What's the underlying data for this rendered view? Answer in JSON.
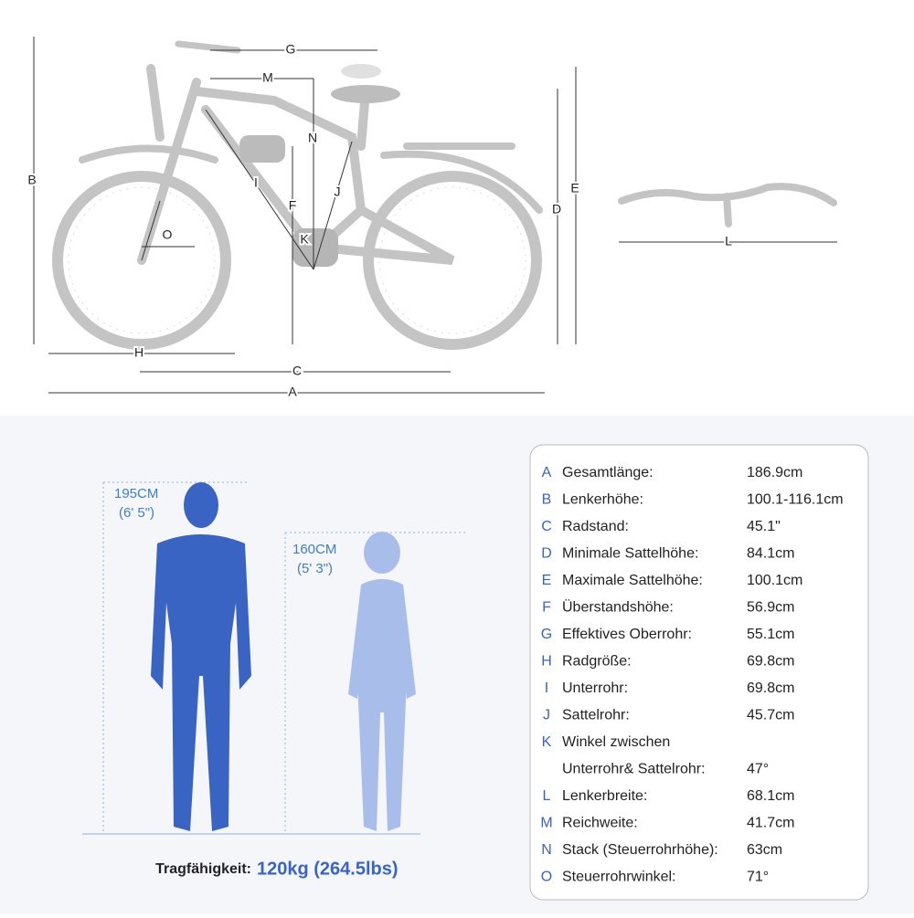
{
  "bike_labels": [
    "G",
    "M",
    "N",
    "B",
    "I",
    "F",
    "J",
    "O",
    "K",
    "D",
    "E",
    "L",
    "H",
    "C",
    "A"
  ],
  "riders": [
    {
      "height": "195CM",
      "imperial": "(6' 5\")"
    },
    {
      "height": "160CM",
      "imperial": "(5' 3\")"
    }
  ],
  "capacity": {
    "label": "Tragfähigkeit:",
    "value": "120kg (264.5lbs)"
  },
  "specs": [
    {
      "key": "A",
      "lines": [
        "Gesamtlänge:"
      ],
      "value": "186.9cm"
    },
    {
      "key": "B",
      "lines": [
        "Lenkerhöhe:"
      ],
      "value": "100.1-116.1cm"
    },
    {
      "key": "C",
      "lines": [
        "Radstand:"
      ],
      "value": "45.1\""
    },
    {
      "key": "D",
      "lines": [
        "Minimale Sattelhöhe:"
      ],
      "value": "84.1cm"
    },
    {
      "key": "E",
      "lines": [
        "Maximale Sattelhöhe:"
      ],
      "value": "100.1cm"
    },
    {
      "key": "F",
      "lines": [
        "Überstandshöhe:"
      ],
      "value": "56.9cm"
    },
    {
      "key": "G",
      "lines": [
        "Effektives Oberrohr:"
      ],
      "value": "55.1cm"
    },
    {
      "key": "H",
      "lines": [
        "Radgröße:"
      ],
      "value": "69.8cm"
    },
    {
      "key": "I",
      "lines": [
        "Unterrohr:"
      ],
      "value": "69.8cm"
    },
    {
      "key": "J",
      "lines": [
        "Sattelrohr:"
      ],
      "value": "45.7cm"
    },
    {
      "key": "K",
      "lines": [
        "Winkel zwischen",
        "Unterrohr& Sattelrohr:"
      ],
      "value": "47°"
    },
    {
      "key": "L",
      "lines": [
        "Lenkerbreite:"
      ],
      "value": "68.1cm"
    },
    {
      "key": "M",
      "lines": [
        "Reichweite:"
      ],
      "value": "41.7cm"
    },
    {
      "key": "N",
      "lines": [
        "Stack (Steuerrohrhöhe):"
      ],
      "value": "63cm"
    },
    {
      "key": "O",
      "lines": [
        "Steuerrohrwinkel:"
      ],
      "value": "71°"
    }
  ]
}
